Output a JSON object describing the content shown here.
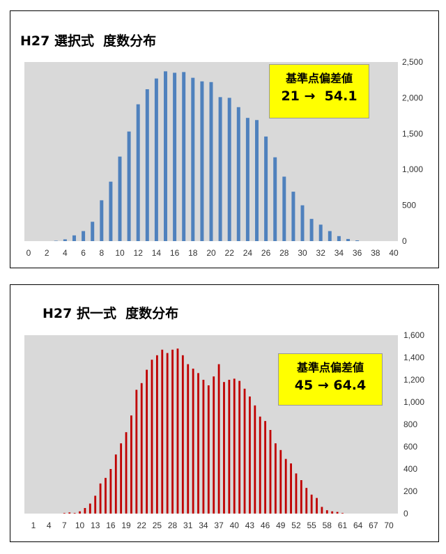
{
  "charts": [
    {
      "title": "H27 選択式  度数分布",
      "callout": {
        "label": "基準点偏差値",
        "value": "21 →  54.1"
      },
      "bar_color": "#4f81bd"
    },
    {
      "title": "H27 択一式  度数分布",
      "callout": {
        "label": "基準点偏差値",
        "value": "45 → 64.4"
      },
      "bar_color": "#c00000"
    }
  ],
  "chart_data": [
    {
      "type": "bar",
      "title": "H27 選択式  度数分布",
      "x": [
        0,
        1,
        2,
        3,
        4,
        5,
        6,
        7,
        8,
        9,
        10,
        11,
        12,
        13,
        14,
        15,
        16,
        17,
        18,
        19,
        20,
        21,
        22,
        23,
        24,
        25,
        26,
        27,
        28,
        29,
        30,
        31,
        32,
        33,
        34,
        35,
        36,
        37,
        38,
        39,
        40
      ],
      "values": [
        0,
        0,
        0,
        5,
        25,
        80,
        140,
        270,
        570,
        830,
        1180,
        1530,
        1910,
        2120,
        2270,
        2370,
        2350,
        2360,
        2280,
        2230,
        2220,
        2010,
        2000,
        1870,
        1720,
        1690,
        1460,
        1170,
        900,
        690,
        500,
        310,
        230,
        140,
        70,
        30,
        10,
        0,
        0,
        0,
        0
      ],
      "xticks": [
        "0",
        "2",
        "4",
        "6",
        "8",
        "10",
        "12",
        "14",
        "16",
        "18",
        "20",
        "22",
        "24",
        "26",
        "28",
        "30",
        "32",
        "34",
        "36",
        "38",
        "40"
      ],
      "yticks": [
        "0",
        "500",
        "1,000",
        "1,500",
        "2,000",
        "2,500"
      ],
      "ylim": [
        0,
        2500
      ],
      "xlabel": "",
      "ylabel": "",
      "legend": "none"
    },
    {
      "type": "bar",
      "title": "H27 択一式  度数分布",
      "x": [
        1,
        2,
        3,
        4,
        5,
        6,
        7,
        8,
        9,
        10,
        11,
        12,
        13,
        14,
        15,
        16,
        17,
        18,
        19,
        20,
        21,
        22,
        23,
        24,
        25,
        26,
        27,
        28,
        29,
        30,
        31,
        32,
        33,
        34,
        35,
        36,
        37,
        38,
        39,
        40,
        41,
        42,
        43,
        44,
        45,
        46,
        47,
        48,
        49,
        50,
        51,
        52,
        53,
        54,
        55,
        56,
        57,
        58,
        59,
        60,
        61,
        62,
        63,
        64,
        65,
        66,
        67,
        68,
        69,
        70
      ],
      "values": [
        0,
        0,
        0,
        0,
        0,
        0,
        5,
        10,
        5,
        20,
        50,
        90,
        160,
        270,
        320,
        400,
        530,
        630,
        730,
        880,
        1110,
        1170,
        1290,
        1380,
        1420,
        1470,
        1440,
        1470,
        1480,
        1420,
        1340,
        1300,
        1260,
        1200,
        1150,
        1230,
        1340,
        1180,
        1200,
        1210,
        1190,
        1120,
        1050,
        970,
        870,
        830,
        750,
        630,
        570,
        490,
        450,
        360,
        300,
        230,
        170,
        140,
        60,
        30,
        20,
        15,
        5,
        0,
        0,
        0,
        0,
        0,
        0,
        0,
        0,
        0
      ],
      "xticks": [
        "1",
        "4",
        "7",
        "10",
        "13",
        "16",
        "19",
        "22",
        "25",
        "28",
        "31",
        "34",
        "37",
        "40",
        "43",
        "46",
        "49",
        "52",
        "55",
        "58",
        "61",
        "64",
        "67",
        "70"
      ],
      "yticks": [
        "0",
        "200",
        "400",
        "600",
        "800",
        "1,000",
        "1,200",
        "1,400",
        "1,600"
      ],
      "ylim": [
        0,
        1600
      ],
      "xlabel": "",
      "ylabel": "",
      "legend": "none"
    }
  ]
}
